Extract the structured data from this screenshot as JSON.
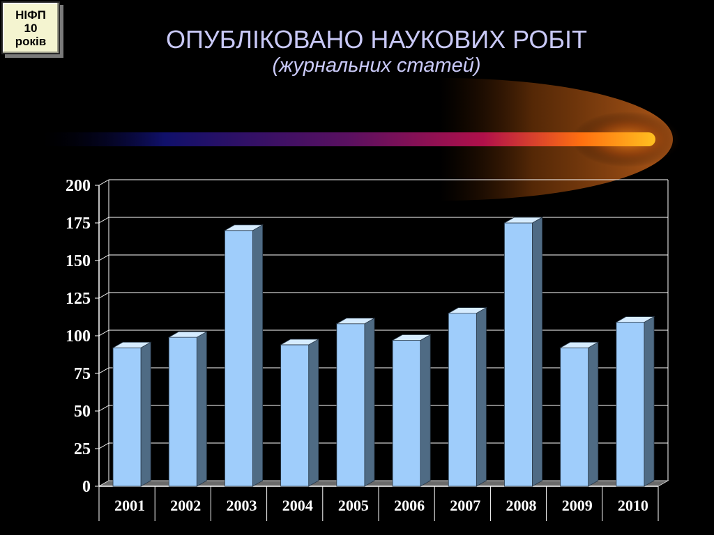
{
  "badge": {
    "line1": "НІФП",
    "line2": "10",
    "line3": "років"
  },
  "header": {
    "title": "ОПУБЛІКОВАНО НАУКОВИХ РОБІТ",
    "subtitle": "(журнальних статей)"
  },
  "colors": {
    "background": "#000000",
    "title": "#c9c9f7",
    "bar_front": "#9fcdfb",
    "bar_side": "#4f6b84",
    "bar_top": "#d6ecff",
    "grid": "#ffffff",
    "floor": "#6a6a6a"
  },
  "chart_data": {
    "type": "bar",
    "categories": [
      "2001",
      "2002",
      "2003",
      "2004",
      "2005",
      "2006",
      "2007",
      "2008",
      "2009",
      "2010"
    ],
    "values": [
      92,
      99,
      170,
      94,
      108,
      97,
      115,
      175,
      92,
      109
    ],
    "title": "ОПУБЛІКОВАНО НАУКОВИХ РОБІТ",
    "subtitle": "(журнальних статей)",
    "xlabel": "",
    "ylabel": "",
    "ylim": [
      0,
      200
    ],
    "yticks": [
      0,
      25,
      50,
      75,
      100,
      125,
      150,
      175,
      200
    ],
    "grid": true,
    "style": "3d"
  }
}
